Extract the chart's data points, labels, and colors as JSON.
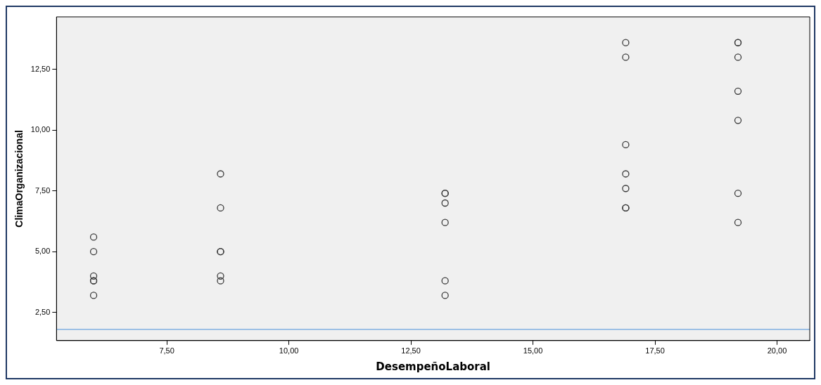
{
  "chart_data": {
    "type": "scatter",
    "xlabel": "DesempeñoLaboral",
    "ylabel": "ClimaOrganizacional",
    "xlim": [
      5.24,
      20.67
    ],
    "ylim": [
      1.34,
      14.66
    ],
    "xticks": [
      {
        "value": 7.5,
        "label": "7,50"
      },
      {
        "value": 10,
        "label": "10,00"
      },
      {
        "value": 12.5,
        "label": "12,50"
      },
      {
        "value": 15,
        "label": "15,00"
      },
      {
        "value": 17.5,
        "label": "17,50"
      },
      {
        "value": 20,
        "label": "20,00"
      }
    ],
    "yticks": [
      {
        "value": 2.5,
        "label": "2,50"
      },
      {
        "value": 5,
        "label": "5,00"
      },
      {
        "value": 7.5,
        "label": "7,50"
      },
      {
        "value": 10,
        "label": "10,00"
      },
      {
        "value": 12.5,
        "label": "12,50"
      }
    ],
    "x": [
      6.0,
      6.0,
      6.0,
      6.0,
      6.0,
      6.0,
      8.6,
      8.6,
      8.6,
      8.6,
      8.6,
      8.6,
      13.2,
      13.2,
      13.2,
      13.2,
      13.2,
      13.2,
      16.9,
      16.9,
      16.9,
      16.9,
      16.9,
      16.9,
      16.9,
      19.2,
      19.2,
      19.2,
      19.2,
      19.2,
      19.2,
      19.2
    ],
    "values": [
      5.6,
      5.0,
      4.0,
      3.8,
      3.8,
      3.2,
      8.2,
      6.8,
      5.0,
      5.0,
      4.0,
      3.8,
      7.4,
      7.4,
      7.0,
      6.2,
      3.8,
      3.2,
      13.6,
      13.0,
      9.4,
      8.2,
      7.6,
      6.8,
      6.8,
      13.6,
      13.6,
      13.0,
      11.6,
      10.4,
      7.4,
      6.2
    ],
    "color": "#3a3a3a",
    "marker": "circle",
    "grid": false,
    "legend": false,
    "ref_lines": [
      {
        "axis": "y",
        "value": 1.8,
        "color": "#4a90d9"
      }
    ]
  }
}
